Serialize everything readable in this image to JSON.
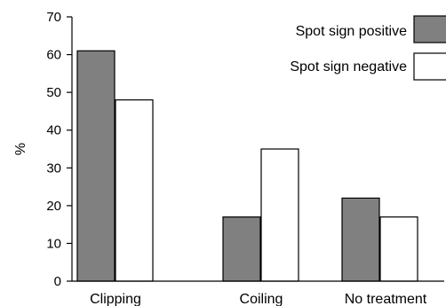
{
  "chart_data": {
    "type": "bar",
    "title": "",
    "xlabel": "",
    "ylabel": "%",
    "ylim": [
      0,
      70
    ],
    "yticks": [
      0,
      10,
      20,
      30,
      40,
      50,
      60,
      70
    ],
    "categories": [
      "Clipping",
      "Coiling",
      "No treatment"
    ],
    "series": [
      {
        "name": "Spot sign positive",
        "values": [
          61,
          17,
          22
        ],
        "color": "#808080"
      },
      {
        "name": "Spot sign negative",
        "values": [
          48,
          35,
          17
        ],
        "color": "#ffffff"
      }
    ],
    "grid": false,
    "legend_position": "top-right"
  }
}
